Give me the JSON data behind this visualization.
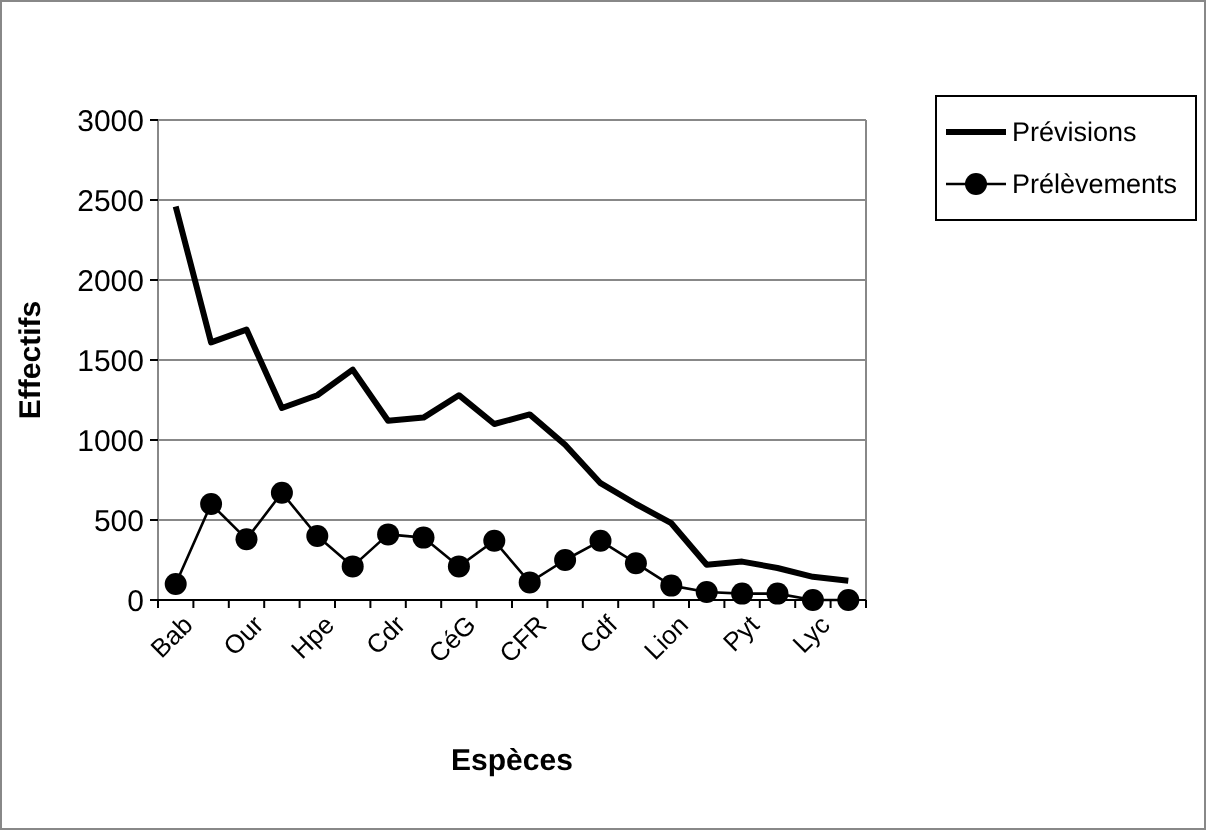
{
  "chart_data": {
    "type": "line",
    "xlabel": "Espèces",
    "ylabel": "Effectifs",
    "categories": [
      "Bab",
      null,
      "Our",
      null,
      "Hpe",
      null,
      "Cdr",
      null,
      "CéG",
      null,
      "CFR",
      null,
      "Cdf",
      null,
      "Lion",
      null,
      "Pyt",
      null,
      "Lyc",
      null
    ],
    "series": [
      {
        "name": "Prévisions",
        "color": "#000000",
        "marker": "none",
        "values": [
          2460,
          1610,
          1690,
          1200,
          1280,
          1440,
          1120,
          1140,
          1280,
          1100,
          1160,
          970,
          730,
          600,
          480,
          220,
          240,
          200,
          145,
          120
        ]
      },
      {
        "name": "Prélèvements",
        "color": "#000000",
        "marker": "circle",
        "values": [
          100,
          600,
          380,
          670,
          400,
          210,
          410,
          390,
          210,
          370,
          110,
          250,
          370,
          230,
          90,
          50,
          40,
          40,
          0,
          0
        ]
      }
    ],
    "ylim": [
      0,
      3000
    ],
    "yticks": [
      0,
      500,
      1000,
      1500,
      2000,
      2500,
      3000
    ],
    "grid": "y",
    "legend": "right"
  }
}
